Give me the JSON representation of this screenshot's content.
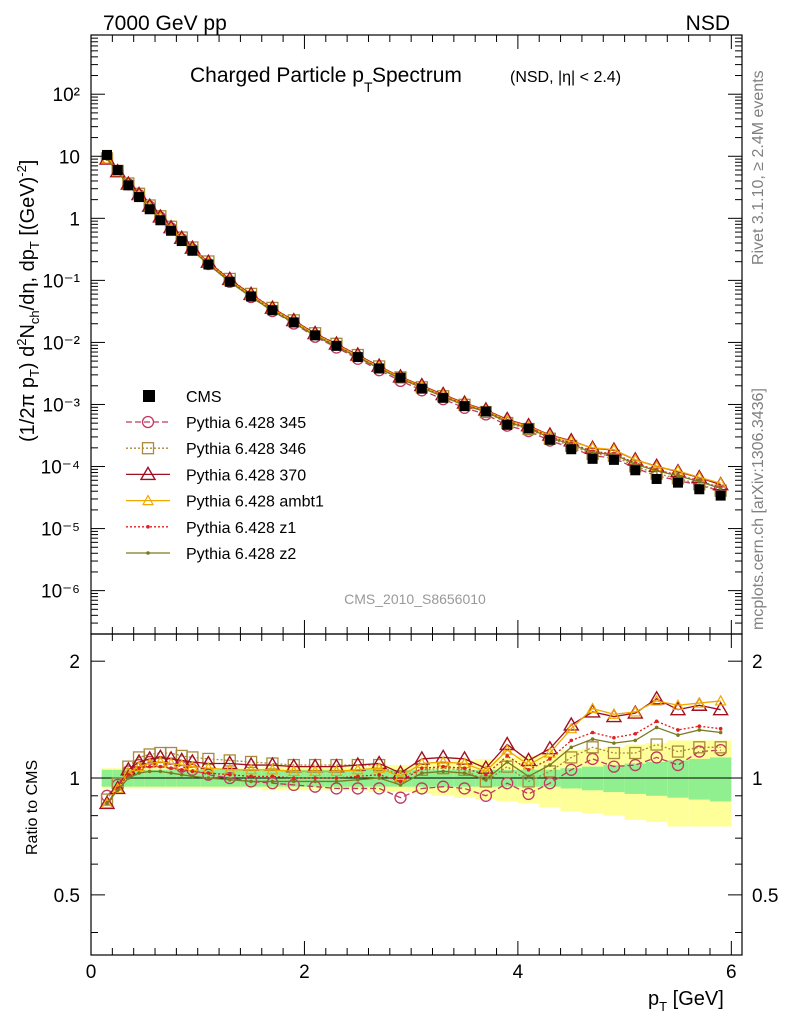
{
  "header": {
    "beam": "7000 GeV pp",
    "process": "NSD",
    "title_main": "Charged Particle p",
    "title_main_sub": "T",
    "title_main_tail": " Spectrum",
    "title_small": "(NSD, |η| < 2.4)",
    "analysis": "CMS_2010_S8656010",
    "side_rivet": "Rivet 3.1.10, ≥ 2.4M events",
    "side_mcplots": "mcplots.cern.ch [arXiv:1306.3436]"
  },
  "axes": {
    "ylabel_main": "(1/2π p_T) d²N_ch/dη, dp_T [(GeV)⁻²]",
    "ylabel_ratio": "Ratio to CMS",
    "xlabel": "p_T [GeV]",
    "x_ticks": [
      "0",
      "2",
      "4",
      "6"
    ],
    "y_ticks_main": [
      "10⁻⁶",
      "10⁻⁵",
      "10⁻⁴",
      "10⁻³",
      "10⁻²",
      "10⁻¹",
      "1",
      "10",
      "10²"
    ],
    "y_ticks_ratio": [
      "0.5",
      "1",
      "2"
    ]
  },
  "colors": {
    "cms": "#000000",
    "p345": "#c0395e",
    "p346": "#a88a3a",
    "p370": "#a01020",
    "ambt1": "#f0a800",
    "z1": "#e02020",
    "z2": "#7a7a20",
    "band_inner": "#90f090",
    "band_outer": "#ffff99"
  },
  "chart_data": {
    "type": "scatter",
    "xlim": [
      0,
      6.1
    ],
    "ylim_main": [
      2e-07,
      900
    ],
    "ylim_ratio": [
      0.35,
      2.35
    ],
    "yscale_main": "log",
    "yscale_ratio": "log",
    "legend_placement": "middle-left",
    "x": [
      0.15,
      0.25,
      0.35,
      0.45,
      0.55,
      0.65,
      0.75,
      0.85,
      0.95,
      1.1,
      1.3,
      1.5,
      1.7,
      1.9,
      2.1,
      2.3,
      2.5,
      2.7,
      2.9,
      3.1,
      3.3,
      3.5,
      3.7,
      3.9,
      4.1,
      4.3,
      4.5,
      4.7,
      4.9,
      5.1,
      5.3,
      5.5,
      5.7,
      5.9
    ],
    "cms": [
      10.5,
      6.0,
      3.4,
      2.2,
      1.4,
      0.93,
      0.63,
      0.43,
      0.3,
      0.18,
      0.095,
      0.055,
      0.033,
      0.021,
      0.013,
      0.0088,
      0.0058,
      0.0038,
      0.0027,
      0.0018,
      0.00128,
      0.00094,
      0.00077,
      0.00047,
      0.00041,
      0.00027,
      0.00019,
      0.000133,
      0.000128,
      8.7e-05,
      6.3e-05,
      5.5e-05,
      4.3e-05,
      3.4e-05
    ],
    "cms_band_inner": [
      0.05,
      0.05,
      0.05,
      0.05,
      0.05,
      0.05,
      0.05,
      0.05,
      0.05,
      0.05,
      0.05,
      0.05,
      0.05,
      0.05,
      0.05,
      0.05,
      0.05,
      0.05,
      0.05,
      0.05,
      0.05,
      0.05,
      0.05,
      0.05,
      0.05,
      0.05,
      0.06,
      0.07,
      0.08,
      0.09,
      0.1,
      0.11,
      0.12,
      0.13
    ],
    "cms_band_outer": [
      0.06,
      0.06,
      0.06,
      0.06,
      0.06,
      0.06,
      0.06,
      0.06,
      0.06,
      0.06,
      0.06,
      0.06,
      0.07,
      0.07,
      0.07,
      0.07,
      0.07,
      0.08,
      0.08,
      0.09,
      0.1,
      0.11,
      0.12,
      0.13,
      0.14,
      0.16,
      0.18,
      0.19,
      0.2,
      0.22,
      0.23,
      0.25,
      0.25,
      0.25
    ],
    "series": [
      {
        "name": "Pythia 6.428 345",
        "key": "p345",
        "marker": "circle",
        "dash": "6,3",
        "ratio": [
          0.9,
          0.96,
          1.04,
          1.08,
          1.1,
          1.1,
          1.09,
          1.07,
          1.05,
          1.02,
          1.0,
          0.98,
          0.97,
          0.96,
          0.95,
          0.94,
          0.94,
          0.94,
          0.89,
          0.94,
          0.95,
          0.94,
          0.9,
          0.97,
          0.91,
          0.97,
          1.05,
          1.12,
          1.07,
          1.08,
          1.13,
          1.08,
          1.17,
          1.18
        ]
      },
      {
        "name": "Pythia 6.428 346",
        "key": "p346",
        "marker": "square",
        "dash": "2,2",
        "ratio": [
          0.88,
          0.97,
          1.07,
          1.13,
          1.15,
          1.16,
          1.16,
          1.14,
          1.13,
          1.12,
          1.11,
          1.1,
          1.09,
          1.08,
          1.08,
          1.08,
          1.08,
          1.08,
          1.01,
          1.05,
          1.06,
          1.05,
          0.98,
          1.07,
          0.98,
          1.04,
          1.13,
          1.2,
          1.16,
          1.16,
          1.22,
          1.17,
          1.2,
          1.2
        ]
      },
      {
        "name": "Pythia 6.428 370",
        "key": "p370",
        "marker": "triangle",
        "dash": "",
        "ratio": [
          0.86,
          0.94,
          1.05,
          1.1,
          1.12,
          1.13,
          1.12,
          1.11,
          1.1,
          1.09,
          1.09,
          1.08,
          1.08,
          1.07,
          1.07,
          1.07,
          1.08,
          1.09,
          1.03,
          1.12,
          1.13,
          1.12,
          1.06,
          1.22,
          1.11,
          1.19,
          1.37,
          1.48,
          1.44,
          1.47,
          1.6,
          1.5,
          1.54,
          1.5
        ]
      },
      {
        "name": "Pythia 6.428 ambt1",
        "key": "ambt1",
        "marker": "triangle-small",
        "dash": "",
        "ratio": [
          0.86,
          0.94,
          1.03,
          1.07,
          1.09,
          1.1,
          1.09,
          1.08,
          1.07,
          1.06,
          1.05,
          1.05,
          1.05,
          1.04,
          1.04,
          1.04,
          1.05,
          1.06,
          1.01,
          1.09,
          1.1,
          1.09,
          1.04,
          1.18,
          1.08,
          1.16,
          1.34,
          1.51,
          1.46,
          1.48,
          1.58,
          1.54,
          1.56,
          1.58
        ]
      },
      {
        "name": "Pythia 6.428 z1",
        "key": "z1",
        "marker": "dot",
        "dash": "2,2",
        "ratio": [
          0.86,
          0.94,
          1.02,
          1.06,
          1.07,
          1.07,
          1.06,
          1.05,
          1.04,
          1.03,
          1.02,
          1.01,
          1.01,
          1.0,
          1.0,
          1.0,
          1.01,
          1.02,
          0.98,
          1.06,
          1.07,
          1.06,
          1.02,
          1.14,
          1.05,
          1.12,
          1.25,
          1.31,
          1.27,
          1.3,
          1.4,
          1.33,
          1.36,
          1.34
        ]
      },
      {
        "name": "Pythia 6.428 z2",
        "key": "z2",
        "marker": "dot",
        "dash": "",
        "ratio": [
          0.86,
          0.93,
          1.0,
          1.03,
          1.04,
          1.04,
          1.03,
          1.02,
          1.01,
          1.0,
          0.99,
          0.98,
          0.98,
          0.98,
          0.98,
          0.98,
          0.99,
          1.0,
          0.96,
          1.03,
          1.04,
          1.03,
          0.99,
          1.1,
          1.01,
          1.08,
          1.2,
          1.26,
          1.23,
          1.25,
          1.35,
          1.29,
          1.33,
          1.31
        ]
      }
    ]
  }
}
